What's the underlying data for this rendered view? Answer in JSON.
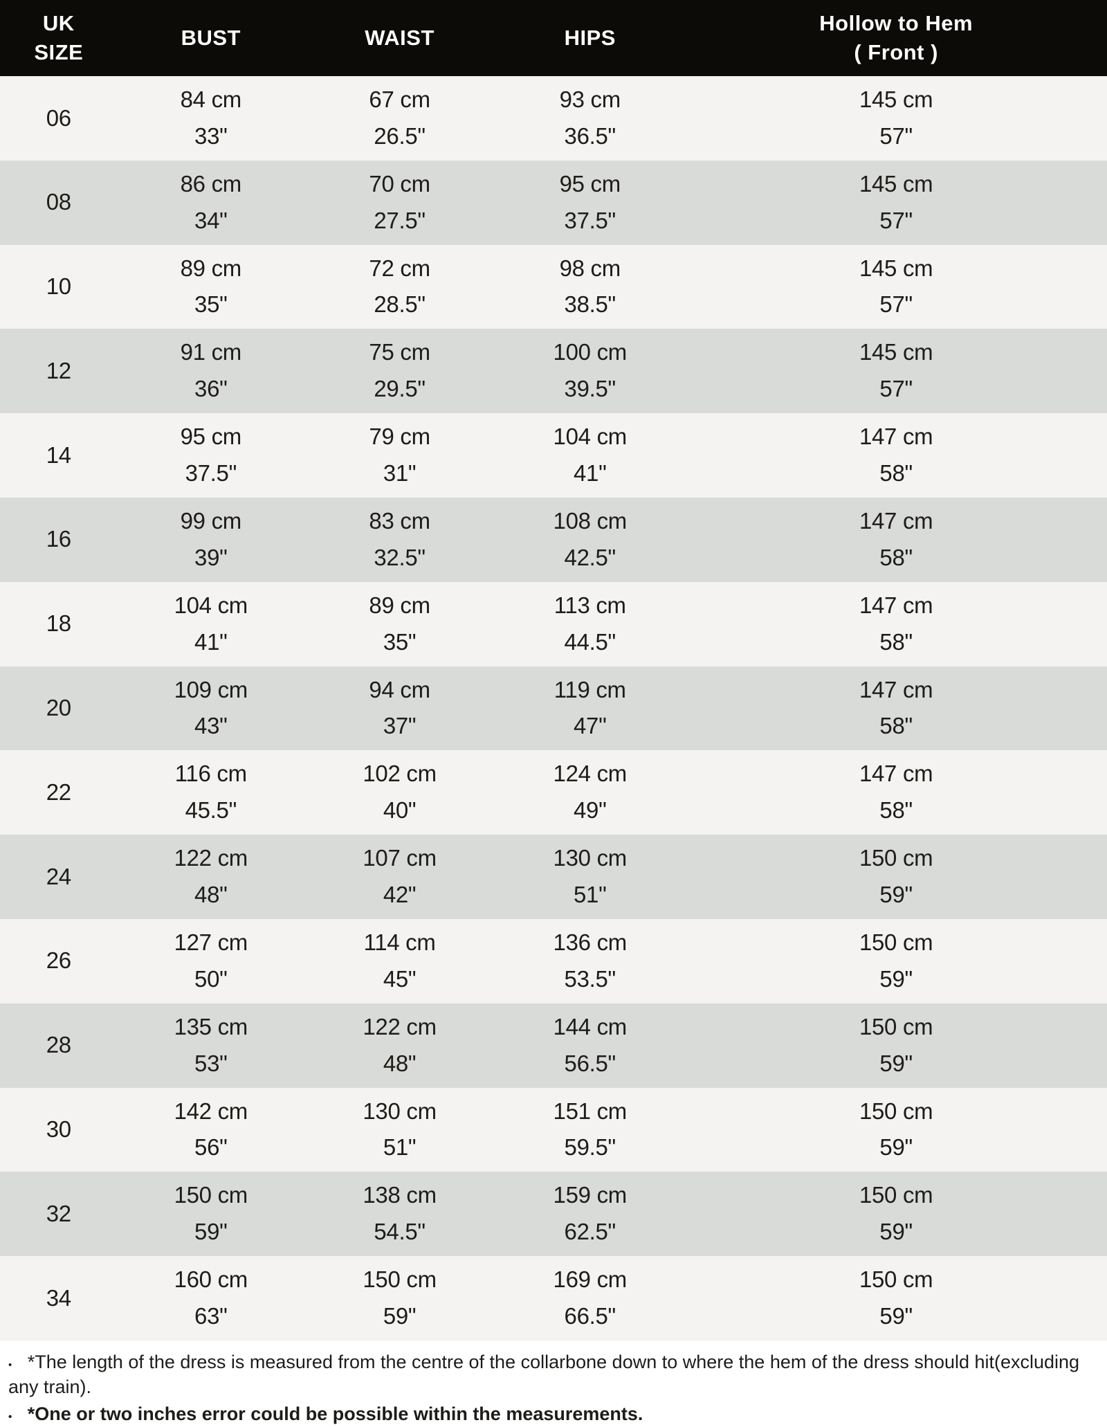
{
  "chart_data": {
    "type": "table",
    "title": "Dress size chart (UK sizes)",
    "columns": [
      "UK SIZE",
      "BUST",
      "WAIST",
      "HIPS",
      "Hollow to Hem ( Front )"
    ],
    "rows": [
      {
        "size": "06",
        "bust_cm": "84 cm",
        "bust_in": "33\"",
        "waist_cm": "67 cm",
        "waist_in": "26.5\"",
        "hips_cm": "93 cm",
        "hips_in": "36.5\"",
        "hollow_cm": "145 cm",
        "hollow_in": "57\""
      },
      {
        "size": "08",
        "bust_cm": "86 cm",
        "bust_in": "34\"",
        "waist_cm": "70 cm",
        "waist_in": "27.5\"",
        "hips_cm": "95 cm",
        "hips_in": "37.5\"",
        "hollow_cm": "145 cm",
        "hollow_in": "57\""
      },
      {
        "size": "10",
        "bust_cm": "89 cm",
        "bust_in": "35\"",
        "waist_cm": "72 cm",
        "waist_in": "28.5\"",
        "hips_cm": "98 cm",
        "hips_in": "38.5\"",
        "hollow_cm": "145 cm",
        "hollow_in": "57\""
      },
      {
        "size": "12",
        "bust_cm": "91 cm",
        "bust_in": "36\"",
        "waist_cm": "75 cm",
        "waist_in": "29.5\"",
        "hips_cm": "100 cm",
        "hips_in": "39.5\"",
        "hollow_cm": "145 cm",
        "hollow_in": "57\""
      },
      {
        "size": "14",
        "bust_cm": "95 cm",
        "bust_in": "37.5\"",
        "waist_cm": "79 cm",
        "waist_in": "31\"",
        "hips_cm": "104 cm",
        "hips_in": "41\"",
        "hollow_cm": "147 cm",
        "hollow_in": "58\""
      },
      {
        "size": "16",
        "bust_cm": "99 cm",
        "bust_in": "39\"",
        "waist_cm": "83 cm",
        "waist_in": "32.5\"",
        "hips_cm": "108 cm",
        "hips_in": "42.5\"",
        "hollow_cm": "147 cm",
        "hollow_in": "58\""
      },
      {
        "size": "18",
        "bust_cm": "104 cm",
        "bust_in": "41\"",
        "waist_cm": "89 cm",
        "waist_in": "35\"",
        "hips_cm": "113 cm",
        "hips_in": "44.5\"",
        "hollow_cm": "147 cm",
        "hollow_in": "58\""
      },
      {
        "size": "20",
        "bust_cm": "109 cm",
        "bust_in": "43\"",
        "waist_cm": "94 cm",
        "waist_in": "37\"",
        "hips_cm": "119 cm",
        "hips_in": "47\"",
        "hollow_cm": "147 cm",
        "hollow_in": "58\""
      },
      {
        "size": "22",
        "bust_cm": "116 cm",
        "bust_in": "45.5\"",
        "waist_cm": "102 cm",
        "waist_in": "40\"",
        "hips_cm": "124 cm",
        "hips_in": "49\"",
        "hollow_cm": "147 cm",
        "hollow_in": "58\""
      },
      {
        "size": "24",
        "bust_cm": "122 cm",
        "bust_in": "48\"",
        "waist_cm": "107 cm",
        "waist_in": "42\"",
        "hips_cm": "130 cm",
        "hips_in": "51\"",
        "hollow_cm": "150 cm",
        "hollow_in": "59\""
      },
      {
        "size": "26",
        "bust_cm": "127 cm",
        "bust_in": "50\"",
        "waist_cm": "114 cm",
        "waist_in": "45\"",
        "hips_cm": "136 cm",
        "hips_in": "53.5\"",
        "hollow_cm": "150 cm",
        "hollow_in": "59\""
      },
      {
        "size": "28",
        "bust_cm": "135 cm",
        "bust_in": "53\"",
        "waist_cm": "122 cm",
        "waist_in": "48\"",
        "hips_cm": "144 cm",
        "hips_in": "56.5\"",
        "hollow_cm": "150 cm",
        "hollow_in": "59\""
      },
      {
        "size": "30",
        "bust_cm": "142 cm",
        "bust_in": "56\"",
        "waist_cm": "130 cm",
        "waist_in": "51\"",
        "hips_cm": "151 cm",
        "hips_in": "59.5\"",
        "hollow_cm": "150 cm",
        "hollow_in": "59\""
      },
      {
        "size": "32",
        "bust_cm": "150 cm",
        "bust_in": "59\"",
        "waist_cm": "138 cm",
        "waist_in": "54.5\"",
        "hips_cm": "159 cm",
        "hips_in": "62.5\"",
        "hollow_cm": "150 cm",
        "hollow_in": "59\""
      },
      {
        "size": "34",
        "bust_cm": "160 cm",
        "bust_in": "63\"",
        "waist_cm": "150 cm",
        "waist_in": "59\"",
        "hips_cm": "169 cm",
        "hips_in": "66.5\"",
        "hollow_cm": "150 cm",
        "hollow_in": "59\""
      }
    ]
  },
  "header": {
    "size_line1": "UK",
    "size_line2": "SIZE",
    "bust": "BUST",
    "waist": "WAIST",
    "hips": "HIPS",
    "hollow_line1": "Hollow to Hem",
    "hollow_line2": "( Front )"
  },
  "notes": [
    {
      "text": "*The length of the dress is measured from the centre of the collarbone down to where the hem of the dress should hit(excluding any train).",
      "bold": false
    },
    {
      "text": "*One or two inches error could be possible within the measurements.",
      "bold": true
    }
  ],
  "colors": {
    "header_bg": "#0d0b08",
    "header_text": "#ffffff",
    "row_light": "#f4f3f1",
    "row_dark": "#d9dbd9",
    "body_text": "#1e1c19",
    "notes_bg": "#ffffff"
  }
}
